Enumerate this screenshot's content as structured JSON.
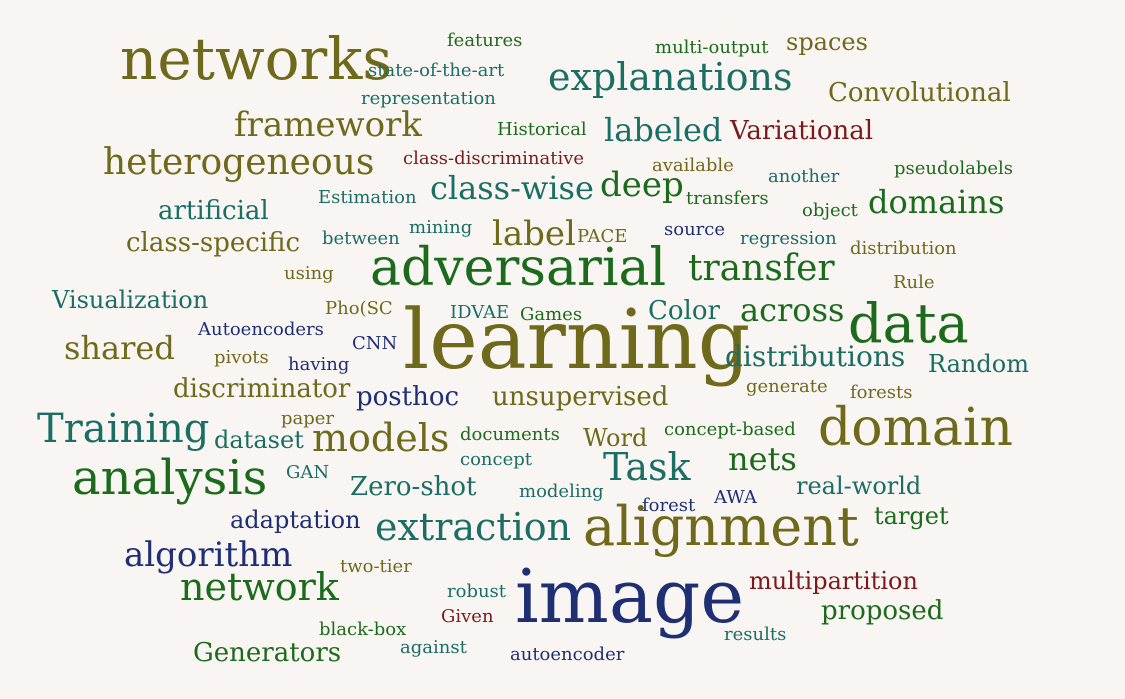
{
  "palette": {
    "olive": "#6f6a1b",
    "teal": "#1b6e64",
    "green": "#1c6b1c",
    "navy": "#1f2f73",
    "maroon": "#7a1a1a",
    "background": "#f8f5f3"
  },
  "words": [
    {
      "text": "learning",
      "color": "olive"
    },
    {
      "text": "image",
      "color": "navy"
    },
    {
      "text": "domain",
      "color": "olive"
    },
    {
      "text": "networks",
      "color": "olive"
    },
    {
      "text": "adversarial",
      "color": "green"
    },
    {
      "text": "alignment",
      "color": "olive"
    },
    {
      "text": "data",
      "color": "green"
    },
    {
      "text": "analysis",
      "color": "green"
    },
    {
      "text": "extraction",
      "color": "teal"
    },
    {
      "text": "explanations",
      "color": "teal"
    },
    {
      "text": "heterogeneous",
      "color": "olive"
    },
    {
      "text": "transfer",
      "color": "green"
    },
    {
      "text": "network",
      "color": "green"
    },
    {
      "text": "models",
      "color": "olive"
    },
    {
      "text": "Training",
      "color": "teal"
    },
    {
      "text": "framework",
      "color": "olive"
    },
    {
      "text": "Task",
      "color": "teal"
    },
    {
      "text": "algorithm",
      "color": "navy"
    },
    {
      "text": "labeled",
      "color": "teal"
    },
    {
      "text": "deep",
      "color": "green"
    },
    {
      "text": "label",
      "color": "olive"
    },
    {
      "text": "class-wise",
      "color": "teal"
    },
    {
      "text": "domains",
      "color": "green"
    },
    {
      "text": "across",
      "color": "green"
    },
    {
      "text": "shared",
      "color": "olive"
    },
    {
      "text": "nets",
      "color": "green"
    },
    {
      "text": "distributions",
      "color": "teal"
    },
    {
      "text": "Variational",
      "color": "maroon"
    },
    {
      "text": "Convolutional",
      "color": "olive"
    },
    {
      "text": "artificial",
      "color": "teal"
    },
    {
      "text": "class-specific",
      "color": "olive"
    },
    {
      "text": "spaces",
      "color": "olive"
    },
    {
      "text": "multipartition",
      "color": "maroon"
    },
    {
      "text": "proposed",
      "color": "green"
    },
    {
      "text": "unsupervised",
      "color": "olive"
    },
    {
      "text": "Zero-shot",
      "color": "teal"
    },
    {
      "text": "real-world",
      "color": "teal"
    },
    {
      "text": "discriminator",
      "color": "olive"
    },
    {
      "text": "Visualization",
      "color": "teal"
    },
    {
      "text": "Random",
      "color": "teal"
    },
    {
      "text": "posthoc",
      "color": "navy"
    },
    {
      "text": "adaptation",
      "color": "navy"
    },
    {
      "text": "Generators",
      "color": "green"
    },
    {
      "text": "Color",
      "color": "teal"
    },
    {
      "text": "Word",
      "color": "olive"
    },
    {
      "text": "dataset",
      "color": "teal"
    },
    {
      "text": "target",
      "color": "green"
    },
    {
      "text": "features",
      "color": "green"
    },
    {
      "text": "multi-output",
      "color": "green"
    },
    {
      "text": "state-of-the-art",
      "color": "teal"
    },
    {
      "text": "representation",
      "color": "teal"
    },
    {
      "text": "Historical",
      "color": "green"
    },
    {
      "text": "class-discriminative",
      "color": "maroon"
    },
    {
      "text": "available",
      "color": "olive"
    },
    {
      "text": "another",
      "color": "teal"
    },
    {
      "text": "pseudolabels",
      "color": "green"
    },
    {
      "text": "Estimation",
      "color": "teal"
    },
    {
      "text": "transfers",
      "color": "green"
    },
    {
      "text": "object",
      "color": "green"
    },
    {
      "text": "mining",
      "color": "teal"
    },
    {
      "text": "between",
      "color": "teal"
    },
    {
      "text": "PACE",
      "color": "olive"
    },
    {
      "text": "source",
      "color": "navy"
    },
    {
      "text": "regression",
      "color": "teal"
    },
    {
      "text": "distribution",
      "color": "olive"
    },
    {
      "text": "using",
      "color": "olive"
    },
    {
      "text": "Rule",
      "color": "olive"
    },
    {
      "text": "Pho(SC",
      "color": "olive"
    },
    {
      "text": "IDVAE",
      "color": "teal"
    },
    {
      "text": "Games",
      "color": "green"
    },
    {
      "text": "Autoencoders",
      "color": "navy"
    },
    {
      "text": "CNN",
      "color": "navy"
    },
    {
      "text": "pivots",
      "color": "olive"
    },
    {
      "text": "having",
      "color": "navy"
    },
    {
      "text": "generate",
      "color": "olive"
    },
    {
      "text": "forests",
      "color": "olive"
    },
    {
      "text": "paper",
      "color": "olive"
    },
    {
      "text": "documents",
      "color": "green"
    },
    {
      "text": "concept-based",
      "color": "green"
    },
    {
      "text": "concept",
      "color": "teal"
    },
    {
      "text": "GAN",
      "color": "teal"
    },
    {
      "text": "modeling",
      "color": "teal"
    },
    {
      "text": "forest",
      "color": "navy"
    },
    {
      "text": "AWA",
      "color": "navy"
    },
    {
      "text": "two-tier",
      "color": "olive"
    },
    {
      "text": "robust",
      "color": "teal"
    },
    {
      "text": "Given",
      "color": "maroon"
    },
    {
      "text": "black-box",
      "color": "green"
    },
    {
      "text": "against",
      "color": "teal"
    },
    {
      "text": "autoencoder",
      "color": "navy"
    },
    {
      "text": "results",
      "color": "teal"
    }
  ]
}
